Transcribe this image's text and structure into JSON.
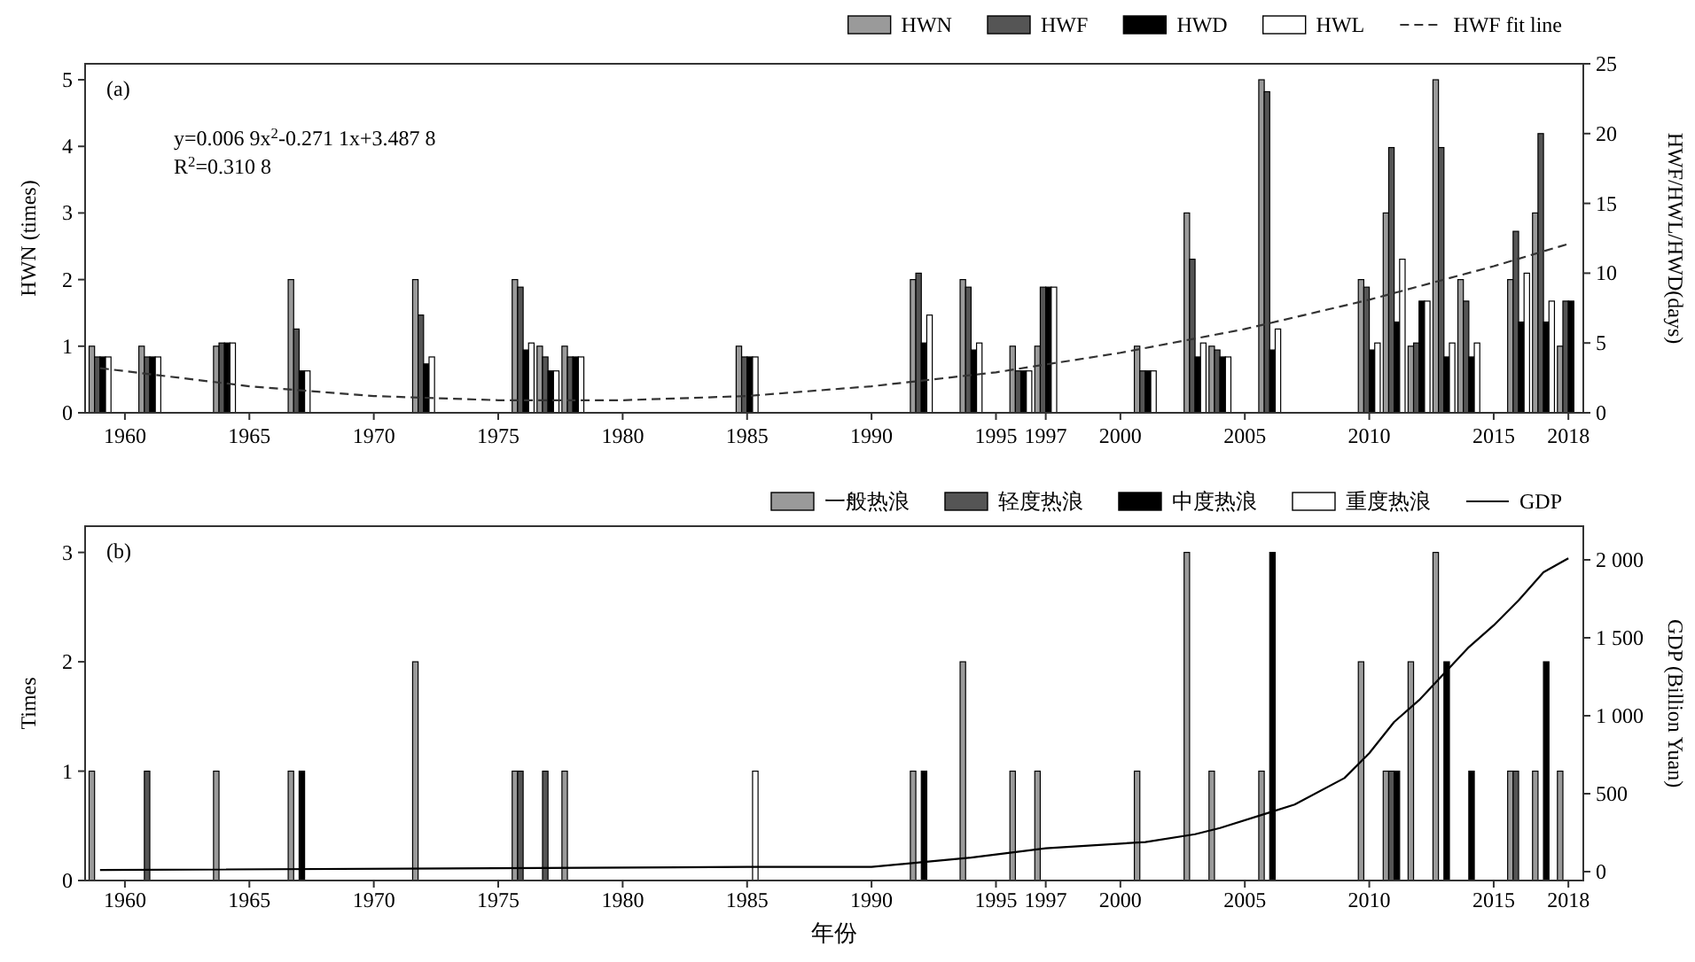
{
  "chart_data": [
    {
      "type": "bar",
      "x": [
        1959,
        1961,
        1964,
        1967,
        1972,
        1976,
        1977,
        1978,
        1985,
        1992,
        1994,
        1996,
        1997,
        2001,
        2003,
        2004,
        2006,
        2010,
        2011,
        2012,
        2013,
        2014,
        2016,
        2017,
        2018
      ],
      "series": [
        {
          "name": "HWN",
          "color": "#9a9a9a",
          "axis": "y",
          "values": [
            1,
            1,
            1,
            2,
            2,
            2,
            1,
            1,
            1,
            2,
            2,
            1,
            1,
            1,
            3,
            1,
            5,
            2,
            3,
            1,
            5,
            2,
            2,
            3,
            1
          ]
        },
        {
          "name": "HWF",
          "color": "#555555",
          "axis": "y2",
          "values": [
            4,
            4,
            5,
            6,
            7,
            9,
            4,
            4,
            4,
            10,
            9,
            3,
            9,
            3,
            11,
            4.5,
            23,
            9,
            19,
            5,
            19,
            8,
            13,
            20,
            8
          ]
        },
        {
          "name": "HWD",
          "color": "#000000",
          "axis": "y2",
          "values": [
            4,
            4,
            5,
            3,
            3.5,
            4.5,
            3,
            4,
            4,
            5,
            4.5,
            3,
            9,
            3,
            4,
            4,
            4.5,
            4.5,
            6.5,
            8,
            4,
            4,
            6.5,
            6.5,
            8
          ]
        },
        {
          "name": "HWL",
          "color": "#ffffff",
          "axis": "y2",
          "values": [
            4,
            4,
            5,
            3,
            4,
            5,
            3,
            4,
            4,
            7,
            5,
            3,
            9,
            3,
            5,
            4,
            6,
            5,
            11,
            8,
            5,
            5,
            10,
            8,
            null
          ]
        },
        {
          "name": "HWF fit line",
          "type": "line",
          "line_style": "dashed",
          "color": "#333333",
          "axis": "y2",
          "x": [
            1959,
            1965,
            1970,
            1975,
            1980,
            1985,
            1990,
            1995,
            2000,
            2005,
            2010,
            2015,
            2018
          ],
          "values": [
            3.2,
            1.9,
            1.2,
            0.9,
            0.9,
            1.2,
            1.9,
            2.9,
            4.3,
            6.0,
            8.1,
            10.5,
            12.1
          ]
        }
      ],
      "xlim": [
        1958.4,
        2018.6
      ],
      "xticks": [
        1960,
        1965,
        1970,
        1975,
        1980,
        1985,
        1990,
        1995,
        1997,
        2000,
        2005,
        2010,
        2015,
        2018
      ],
      "ylim": [
        0,
        5.24
      ],
      "yticks": [
        0,
        1,
        2,
        3,
        4,
        5
      ],
      "y2lim": [
        0,
        25
      ],
      "y2ticks": [
        0,
        5,
        10,
        15,
        20,
        25
      ],
      "ylabel": "HWN (times)",
      "y2label": "HWF/HWL/HWD(days)",
      "legend": "top right",
      "annotations": [
        "(a)",
        "y=0.006 9x$^{2}$-0.271 1x+3.487 8",
        "R$^{2}$=0.310 8"
      ]
    },
    {
      "type": "bar",
      "x": [
        1959,
        1961,
        1964,
        1967,
        1972,
        1976,
        1977,
        1978,
        1985,
        1992,
        1994,
        1996,
        1997,
        2001,
        2003,
        2004,
        2006,
        2010,
        2011,
        2012,
        2013,
        2014,
        2016,
        2017,
        2018
      ],
      "series": [
        {
          "name": "一般热浪",
          "color": "#9a9a9a",
          "values": [
            1,
            null,
            1,
            1,
            2,
            1,
            null,
            1,
            null,
            1,
            2,
            1,
            1,
            1,
            3,
            1,
            1,
            2,
            1,
            2,
            3,
            null,
            1,
            1,
            1
          ]
        },
        {
          "name": "轻度热浪",
          "color": "#555555",
          "values": [
            null,
            1,
            null,
            null,
            null,
            1,
            1,
            null,
            null,
            null,
            null,
            null,
            null,
            null,
            null,
            null,
            null,
            null,
            1,
            null,
            null,
            null,
            1,
            null,
            null
          ]
        },
        {
          "name": "中度热浪",
          "color": "#000000",
          "values": [
            null,
            null,
            null,
            1,
            null,
            null,
            null,
            null,
            null,
            1,
            null,
            null,
            null,
            null,
            null,
            null,
            3,
            null,
            1,
            null,
            2,
            1,
            null,
            2,
            null
          ]
        },
        {
          "name": "重度热浪",
          "color": "#ffffff",
          "values": [
            null,
            null,
            null,
            null,
            null,
            null,
            null,
            null,
            1,
            null,
            null,
            null,
            null,
            null,
            null,
            null,
            null,
            null,
            null,
            null,
            null,
            null,
            null,
            null,
            null
          ]
        },
        {
          "name": "GDP",
          "type": "line",
          "line_style": "solid",
          "color": "#000000",
          "axis": "y2",
          "x": [
            1959,
            1985,
            1990,
            1992,
            1994,
            1996,
            1997,
            2001,
            2003,
            2004,
            2006,
            2007,
            2009,
            2010,
            2011,
            2012,
            2013,
            2014,
            2015,
            2016,
            2017,
            2018
          ],
          "values": [
            10,
            30,
            30,
            60,
            90,
            130,
            150,
            190,
            240,
            280,
            380,
            430,
            600,
            760,
            960,
            1100,
            1270,
            1440,
            1580,
            1740,
            1920,
            2010
          ]
        }
      ],
      "xlim": [
        1958.4,
        2018.6
      ],
      "xticks": [
        1960,
        1965,
        1970,
        1975,
        1980,
        1985,
        1990,
        1995,
        1997,
        2000,
        2005,
        2010,
        2015,
        2018
      ],
      "ylim": [
        0,
        3.24
      ],
      "yticks": [
        0,
        1,
        2,
        3
      ],
      "y2lim": [
        -57,
        2216
      ],
      "y2ticks": [
        0,
        500,
        {
          "value": 1000,
          "label": "1 000"
        },
        {
          "value": 1500,
          "label": "1 500"
        },
        {
          "value": 2000,
          "label": "2 000"
        }
      ],
      "xlabel": "年份",
      "ylabel": "Times",
      "y2label": "GDP (Billion Yuan)",
      "legend": "top right",
      "annotations": [
        "(b)"
      ]
    }
  ]
}
